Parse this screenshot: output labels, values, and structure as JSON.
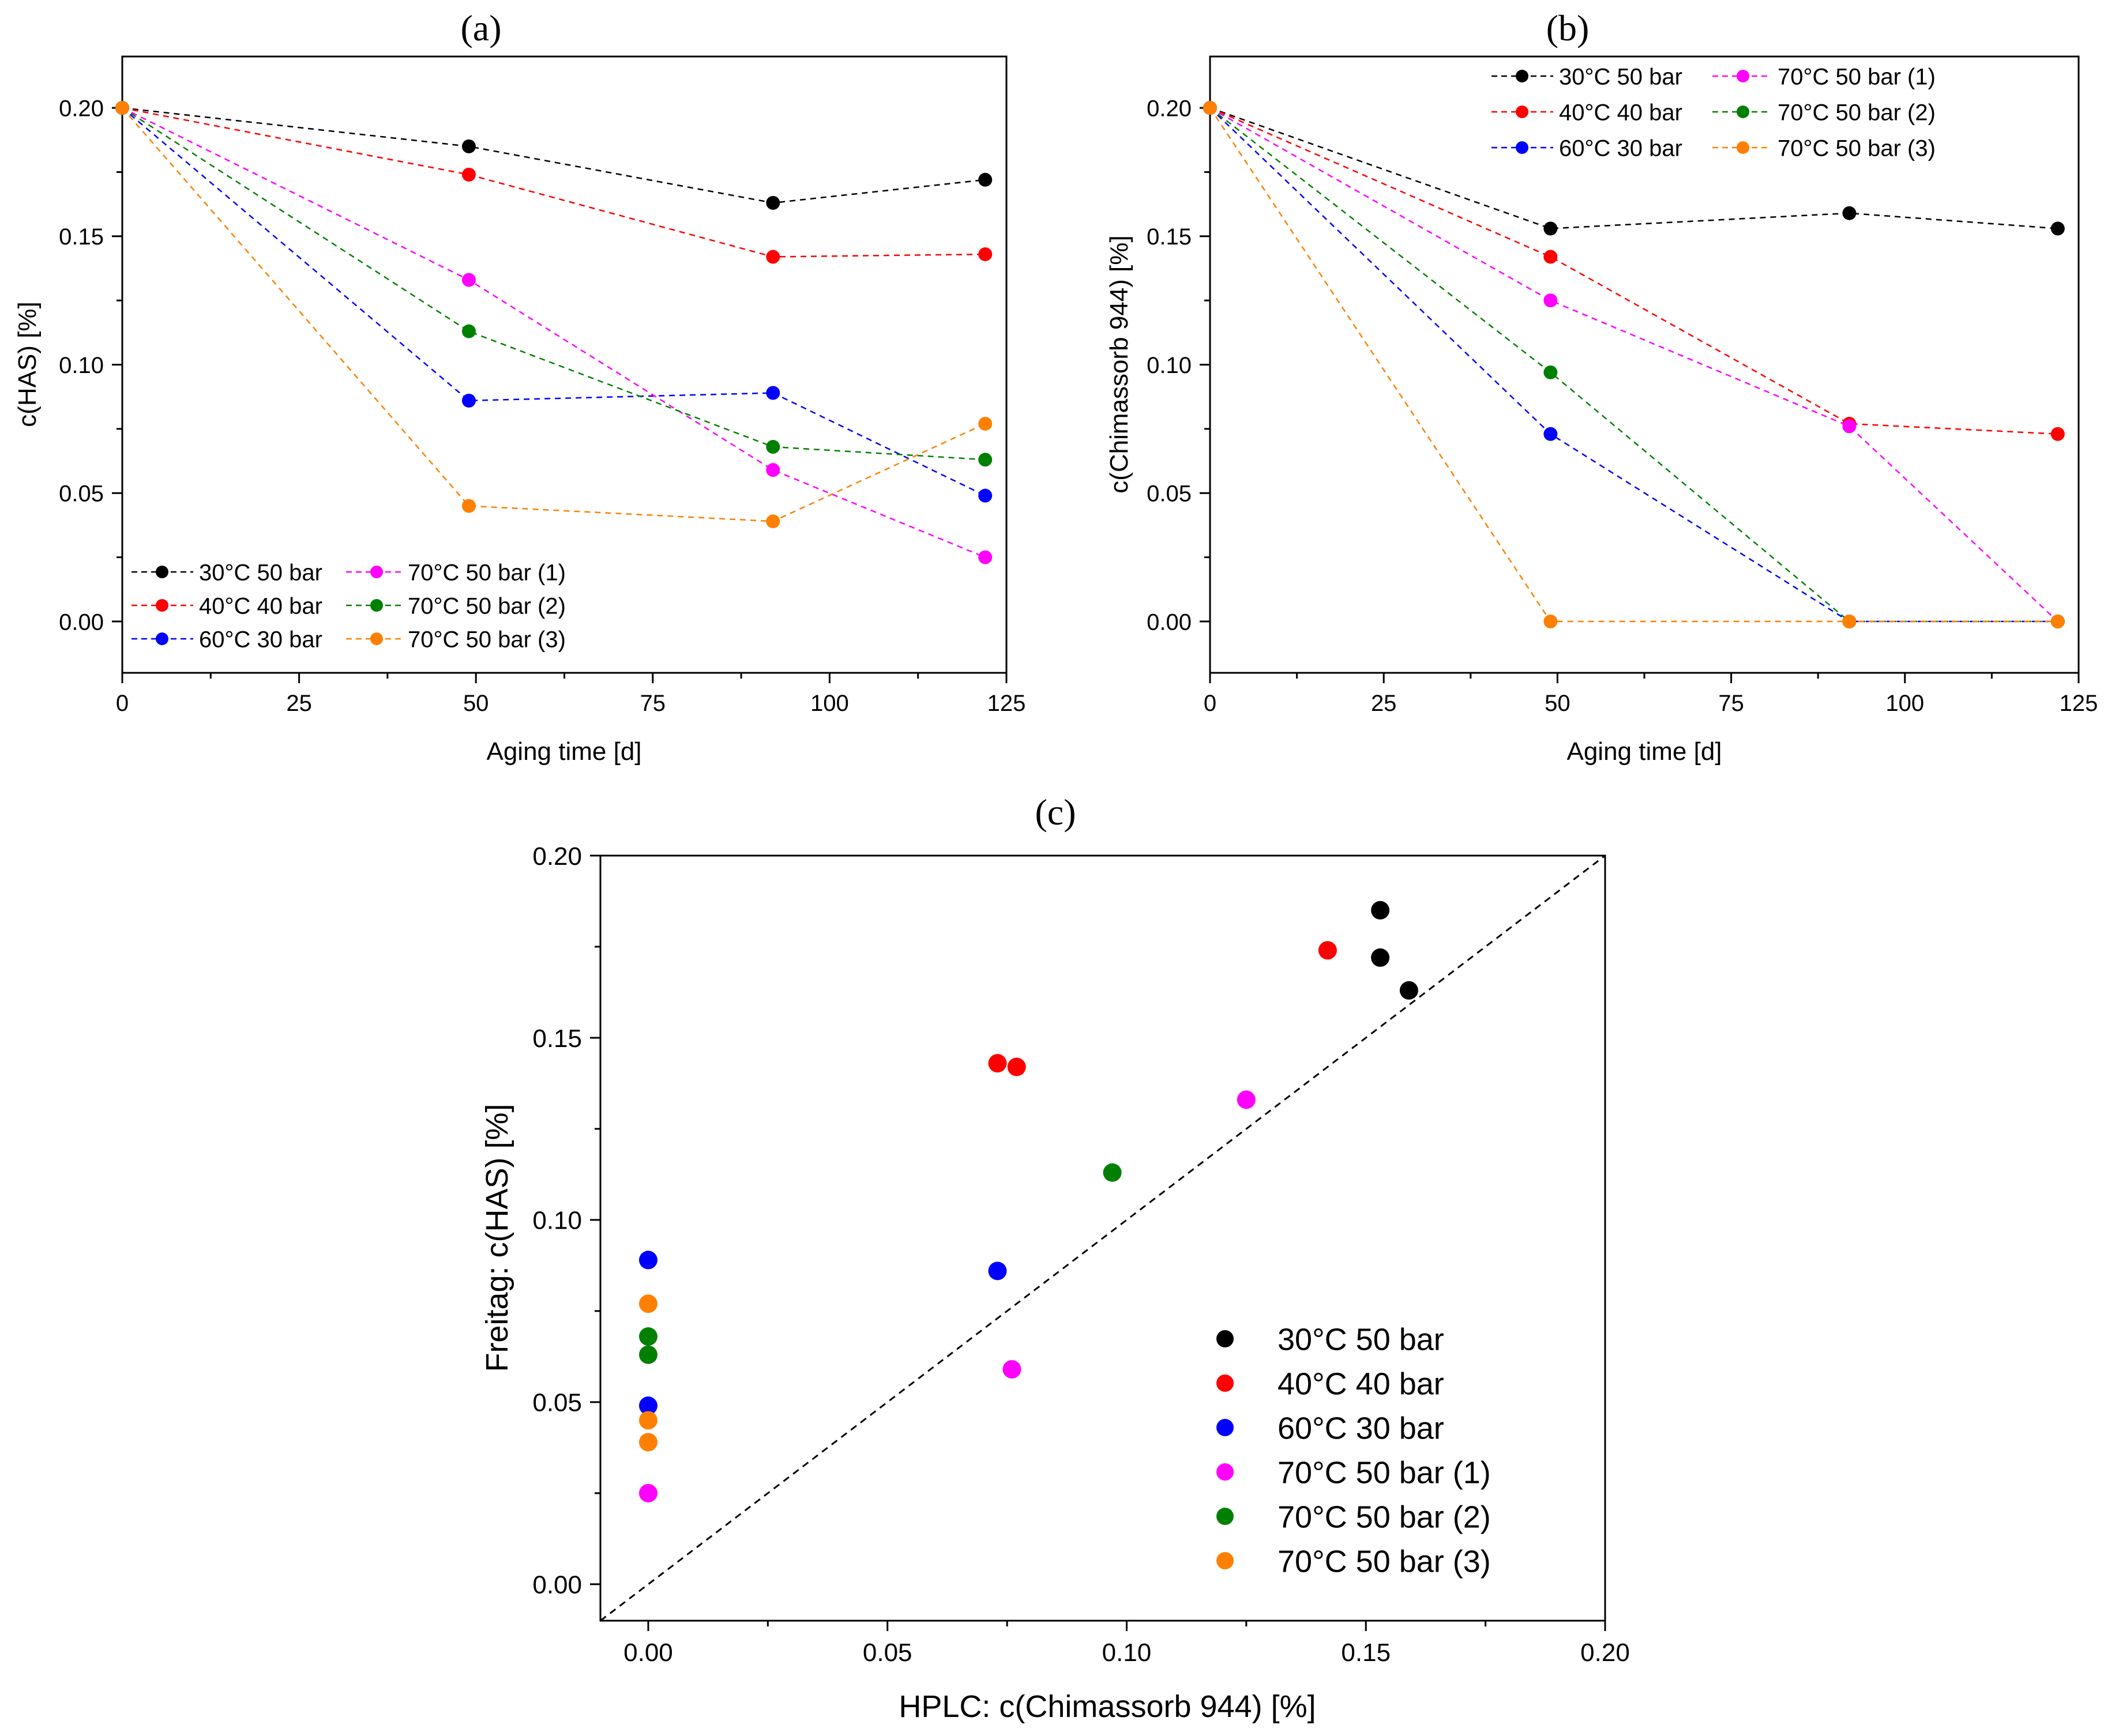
{
  "colors": {
    "30C50": "#000000",
    "40C40": "#ff0000",
    "60C30": "#0000ff",
    "70C50_1": "#ff00ff",
    "70C50_2": "#008000",
    "70C50_3": "#ff8000"
  },
  "chart_data": [
    {
      "id": "a",
      "type": "line",
      "panel_label": "(a)",
      "title": "",
      "xlabel": "Aging time [d]",
      "ylabel": "c(HAS) [%]",
      "xlim": [
        0,
        125
      ],
      "ylim": [
        -0.02,
        0.22
      ],
      "xticks": [
        0,
        25,
        50,
        75,
        100,
        125
      ],
      "xtick_labels": [
        "0",
        "25",
        "50",
        "75",
        "100",
        "125"
      ],
      "yticks": [
        0.0,
        0.05,
        0.1,
        0.15,
        0.2
      ],
      "ytick_labels": [
        "0.00",
        "0.05",
        "0.10",
        "0.15",
        "0.20"
      ],
      "grid": false,
      "legend_position": "bottom-left",
      "series": [
        {
          "key": "30C50",
          "name": "30°C 50 bar",
          "x": [
            0,
            49,
            92,
            122
          ],
          "y": [
            0.2,
            0.185,
            0.163,
            0.172
          ]
        },
        {
          "key": "40C40",
          "name": "40°C 40 bar",
          "x": [
            0,
            49,
            92,
            122
          ],
          "y": [
            0.2,
            0.174,
            0.142,
            0.143
          ]
        },
        {
          "key": "60C30",
          "name": "60°C 30 bar",
          "x": [
            0,
            49,
            92,
            122
          ],
          "y": [
            0.2,
            0.086,
            0.089,
            0.049
          ]
        },
        {
          "key": "70C50_1",
          "name": "70°C 50 bar (1)",
          "x": [
            0,
            49,
            92,
            122
          ],
          "y": [
            0.2,
            0.133,
            0.059,
            0.025
          ]
        },
        {
          "key": "70C50_2",
          "name": "70°C 50 bar (2)",
          "x": [
            0,
            49,
            92,
            122
          ],
          "y": [
            0.2,
            0.113,
            0.068,
            0.063
          ]
        },
        {
          "key": "70C50_3",
          "name": "70°C 50 bar (3)",
          "x": [
            0,
            49,
            92,
            122
          ],
          "y": [
            0.2,
            0.045,
            0.039,
            0.077
          ]
        }
      ]
    },
    {
      "id": "b",
      "type": "line",
      "panel_label": "(b)",
      "title": "",
      "xlabel": "Aging time [d]",
      "ylabel": "c(Chimassorb 944) [%]",
      "xlim": [
        0,
        125
      ],
      "ylim": [
        -0.02,
        0.22
      ],
      "xticks": [
        0,
        25,
        50,
        75,
        100,
        125
      ],
      "xtick_labels": [
        "0",
        "25",
        "50",
        "75",
        "100",
        "125"
      ],
      "yticks": [
        0.0,
        0.05,
        0.1,
        0.15,
        0.2
      ],
      "ytick_labels": [
        "0.00",
        "0.05",
        "0.10",
        "0.15",
        "0.20"
      ],
      "grid": false,
      "legend_position": "top",
      "series": [
        {
          "key": "30C50",
          "name": "30°C 50 bar",
          "x": [
            0,
            49,
            92,
            122
          ],
          "y": [
            0.2,
            0.153,
            0.159,
            0.153
          ]
        },
        {
          "key": "40C40",
          "name": "40°C 40 bar",
          "x": [
            0,
            49,
            92,
            122
          ],
          "y": [
            0.2,
            0.142,
            0.077,
            0.073
          ]
        },
        {
          "key": "60C30",
          "name": "60°C 30 bar",
          "x": [
            0,
            49,
            92,
            122
          ],
          "y": [
            0.2,
            0.073,
            0.0,
            0.0
          ]
        },
        {
          "key": "70C50_1",
          "name": "70°C 50 bar (1)",
          "x": [
            0,
            49,
            92,
            122
          ],
          "y": [
            0.2,
            0.125,
            0.076,
            0.0
          ]
        },
        {
          "key": "70C50_2",
          "name": "70°C 50 bar (2)",
          "x": [
            0,
            49,
            92,
            122
          ],
          "y": [
            0.2,
            0.097,
            0.0,
            0.0
          ]
        },
        {
          "key": "70C50_3",
          "name": "70°C 50 bar (3)",
          "x": [
            0,
            49,
            92,
            122
          ],
          "y": [
            0.2,
            0.0,
            0.0,
            0.0
          ]
        }
      ]
    },
    {
      "id": "c",
      "type": "scatter",
      "panel_label": "(c)",
      "title": "",
      "xlabel": "HPLC: c(Chimassorb 944) [%]",
      "ylabel": "Freitag: c(HAS) [%]",
      "xlim": [
        -0.01,
        0.2
      ],
      "ylim": [
        -0.01,
        0.2
      ],
      "xticks": [
        0.0,
        0.05,
        0.1,
        0.15,
        0.2
      ],
      "xtick_labels": [
        "0.00",
        "0.05",
        "0.10",
        "0.15",
        "0.20"
      ],
      "yticks": [
        0.0,
        0.05,
        0.1,
        0.15,
        0.2
      ],
      "ytick_labels": [
        "0.00",
        "0.05",
        "0.10",
        "0.15",
        "0.20"
      ],
      "grid": false,
      "legend_position": "bottom-right",
      "reference_line": "y = x (dashed)",
      "series": [
        {
          "key": "30C50",
          "name": "30°C 50 bar",
          "x": [
            0.153,
            0.159,
            0.153
          ],
          "y": [
            0.185,
            0.163,
            0.172
          ]
        },
        {
          "key": "40C40",
          "name": "40°C 40 bar",
          "x": [
            0.142,
            0.077,
            0.073
          ],
          "y": [
            0.174,
            0.142,
            0.143
          ]
        },
        {
          "key": "60C30",
          "name": "60°C 30 bar",
          "x": [
            0.073,
            0.0,
            0.0
          ],
          "y": [
            0.086,
            0.089,
            0.049
          ]
        },
        {
          "key": "70C50_1",
          "name": "70°C 50 bar (1)",
          "x": [
            0.125,
            0.076,
            0.0
          ],
          "y": [
            0.133,
            0.059,
            0.025
          ]
        },
        {
          "key": "70C50_2",
          "name": "70°C 50 bar (2)",
          "x": [
            0.097,
            0.0,
            0.0
          ],
          "y": [
            0.113,
            0.068,
            0.063
          ]
        },
        {
          "key": "70C50_3",
          "name": "70°C 50 bar (3)",
          "x": [
            0.0,
            0.0,
            0.0
          ],
          "y": [
            0.045,
            0.039,
            0.077
          ]
        }
      ]
    }
  ]
}
